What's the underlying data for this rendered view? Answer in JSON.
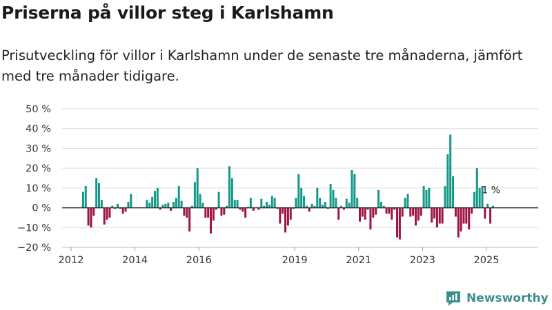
{
  "header": {
    "title": "Priserna på villor steg i Karlshamn",
    "subtitle": "Prisutveckling för villor i Karlshamn under de senaste tre månaderna, jämfört med tre månader tidigare."
  },
  "brand": {
    "name": "Newsworthy"
  },
  "colors": {
    "positive": "#13998a",
    "negative": "#a01442",
    "grid": "#dddddd",
    "axis": "#333333"
  },
  "chart_data": {
    "type": "bar",
    "title": "Priserna på villor steg i Karlshamn",
    "xlabel": "",
    "ylabel": "",
    "ylim": [
      -20,
      50
    ],
    "grid": true,
    "yticks": [
      -20,
      -10,
      0,
      10,
      20,
      30,
      40,
      50
    ],
    "ytick_labels": [
      "−20 %",
      "−10 %",
      "0 %",
      "10 %",
      "20 %",
      "30 %",
      "40 %",
      "50 %"
    ],
    "xticks": [
      2012,
      2014,
      2016,
      2019,
      2021,
      2023,
      2025
    ],
    "xtick_labels": [
      "2012",
      "2014",
      "2016",
      "2019",
      "2021",
      "2023",
      "2025"
    ],
    "x_start": 2012.0,
    "x_end": 2026.5,
    "first_bar_x": 2012.375,
    "bar_step_years": 0.0833,
    "values": [
      8,
      11,
      -9,
      -10,
      -4,
      15,
      12.5,
      4,
      -8.5,
      -6,
      -5,
      1,
      -0.5,
      2,
      -0.5,
      -3,
      -2,
      3,
      7,
      0,
      0,
      0,
      0,
      0,
      4,
      2.5,
      5.5,
      8.5,
      10,
      -1,
      1.5,
      2,
      2.5,
      -1.5,
      3,
      5,
      11,
      3.5,
      -4,
      -5,
      -12,
      1,
      13,
      20,
      7,
      2.5,
      -5,
      -5,
      -13,
      -6.5,
      -1,
      8,
      -4,
      -3.5,
      1,
      21,
      15,
      4,
      4,
      -1,
      -2,
      -5,
      0.5,
      5,
      -1.5,
      0,
      -1,
      4.5,
      1,
      3,
      1.5,
      6,
      5,
      -0.5,
      -8,
      -3,
      -12.5,
      -9,
      -6,
      -0.5,
      5,
      17,
      10,
      6,
      1,
      -2,
      2,
      1,
      10,
      5,
      1.5,
      3,
      -0.5,
      12,
      9,
      5,
      -6,
      1,
      -1,
      4.5,
      2.5,
      19,
      17,
      5,
      -7,
      -4.5,
      -6,
      -1,
      -11,
      -5,
      -3.5,
      9,
      3,
      1,
      -3,
      -3,
      -6,
      -1,
      -15,
      -16,
      -4.5,
      5,
      7,
      -4.5,
      -4,
      -9,
      -6.5,
      -4,
      11,
      9,
      10,
      -7.5,
      -5.5,
      -10,
      -8,
      -8,
      11,
      27,
      37,
      16,
      -4.5,
      -15,
      -12,
      -8,
      -8,
      -11,
      -3,
      8,
      20,
      10,
      11,
      -5.5,
      2,
      -8,
      1
    ],
    "annotation": {
      "text": "1 %",
      "target": "last_bar"
    },
    "legend": "none"
  }
}
